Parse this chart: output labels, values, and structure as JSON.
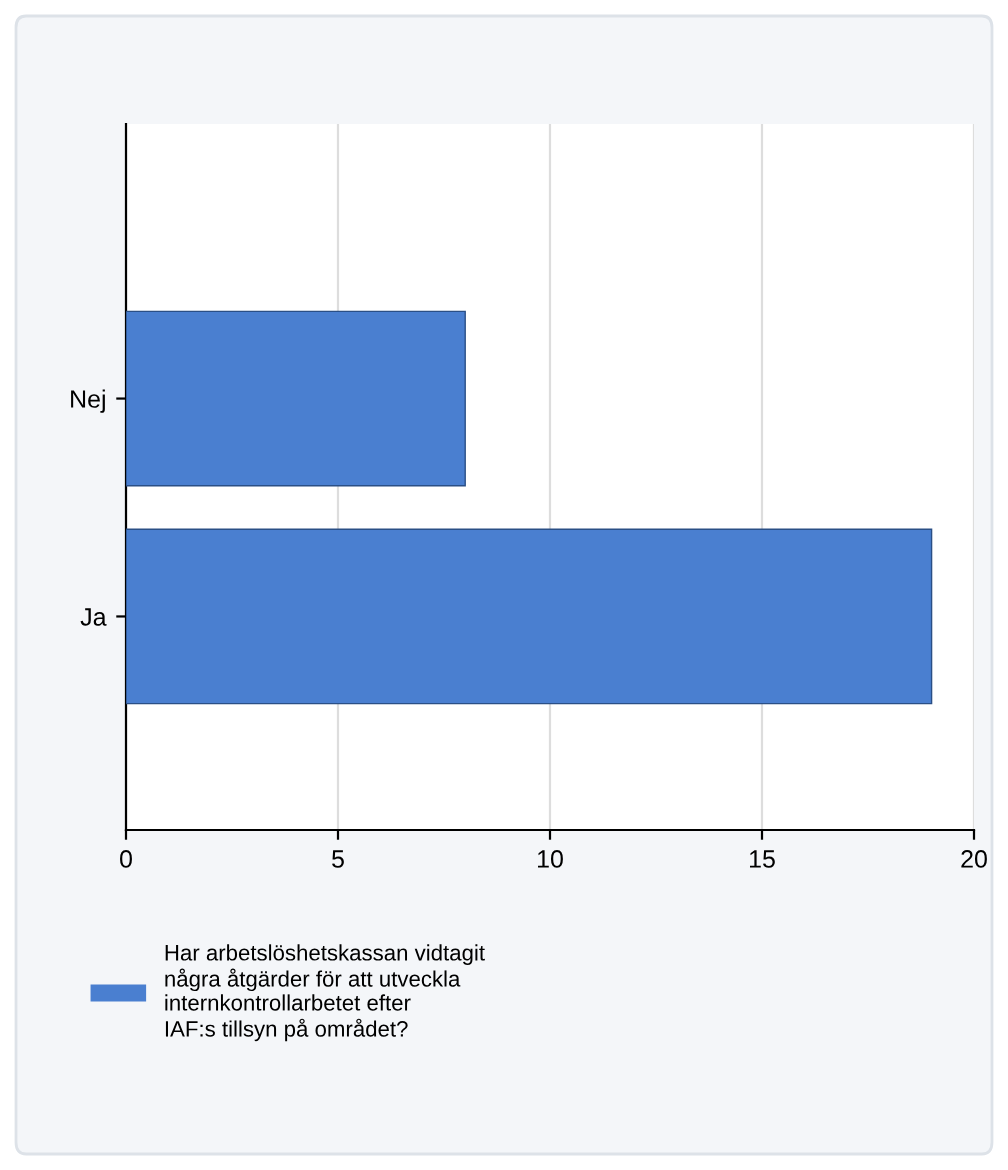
{
  "chart_data": {
    "type": "bar",
    "orientation": "horizontal",
    "categories": [
      "Nej",
      "Ja"
    ],
    "series": [
      {
        "name": "Har arbetslöshetskassan vidtagit\nnågra åtgärder för att utveckla\ninternkontrollarbetet efter\nIAF:s tillsyn på området?",
        "color": "#4a7fd0",
        "values": [
          8,
          19
        ]
      }
    ],
    "xlim": [
      0,
      20
    ],
    "xticks": [
      0,
      5,
      10,
      15,
      20
    ],
    "grid": "x",
    "legend": "bottom"
  }
}
